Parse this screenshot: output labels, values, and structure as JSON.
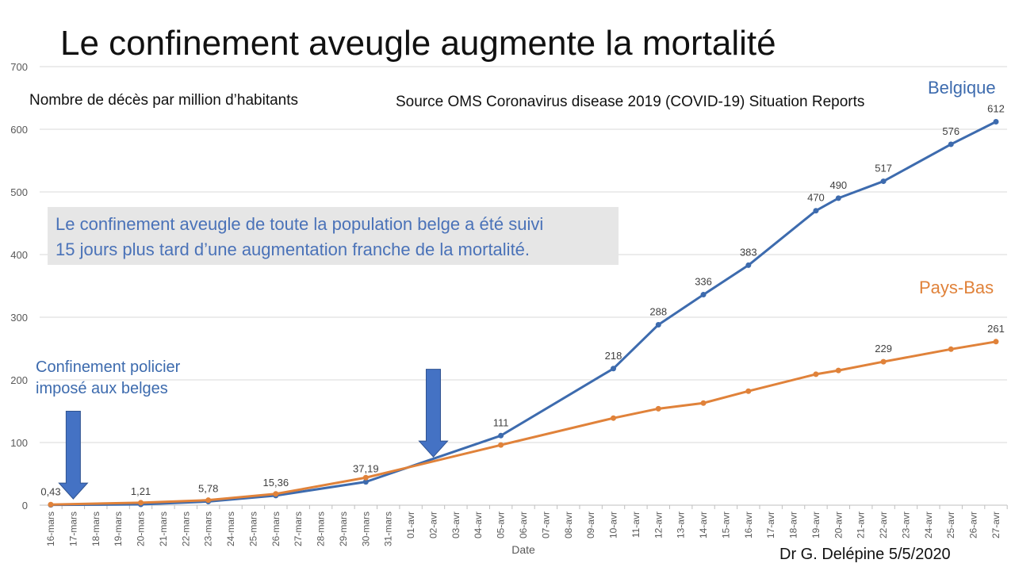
{
  "title": "Le confinement aveugle augmente la mortalité",
  "subtitle": "Nombre de décès par million d’habitants",
  "source": "Source OMS Coronavirus disease 2019 (COVID-19) Situation Reports",
  "callout": {
    "line1": "Le confinement aveugle de toute la population belge a été suivi",
    "line2": "15 jours plus tard d’une augmentation franche de la mortalité."
  },
  "annotation_lockdown": {
    "line1": "Confinement policier",
    "line2": "imposé aux belges"
  },
  "author": "Dr G. Delépine 5/5/2020",
  "colors": {
    "belgique": "#3D6BAE",
    "pays_bas": "#E0823A",
    "arrow": "#4472C4",
    "callout_bg": "#E6E6E6",
    "grid": "#D9D9D9"
  },
  "chart_data": {
    "type": "line",
    "xlabel": "Date",
    "ylabel": "",
    "ylim": [
      0,
      700
    ],
    "yticks": [
      0,
      100,
      200,
      300,
      400,
      500,
      600,
      700
    ],
    "grid": true,
    "categories": [
      "16-mars",
      "17-mars",
      "18-mars",
      "19-mars",
      "20-mars",
      "21-mars",
      "22-mars",
      "23-mars",
      "24-mars",
      "25-mars",
      "26-mars",
      "27-mars",
      "28-mars",
      "29-mars",
      "30-mars",
      "31-mars",
      "01-avr",
      "02-avr",
      "03-avr",
      "04-avr",
      "05-avr",
      "06-avr",
      "07-avr",
      "08-avr",
      "09-avr",
      "10-avr",
      "11-avr",
      "12-avr",
      "13-avr",
      "14-avr",
      "15-avr",
      "16-avr",
      "17-avr",
      "18-avr",
      "19-avr",
      "20-avr",
      "21-avr",
      "22-avr",
      "23-avr",
      "24-avr",
      "25-avr",
      "26-avr",
      "27-avr"
    ],
    "series": [
      {
        "name": "Belgique",
        "color": "#3D6BAE",
        "points": [
          {
            "x": "16-mars",
            "y": 0.43,
            "label": "0,43"
          },
          {
            "x": "20-mars",
            "y": 1.21,
            "label": "1,21"
          },
          {
            "x": "23-mars",
            "y": 5.78,
            "label": "5,78"
          },
          {
            "x": "26-mars",
            "y": 15.36,
            "label": "15,36"
          },
          {
            "x": "30-mars",
            "y": 37.19,
            "label": "37,19"
          },
          {
            "x": "05-avr",
            "y": 111,
            "label": "111"
          },
          {
            "x": "10-avr",
            "y": 218,
            "label": "218"
          },
          {
            "x": "12-avr",
            "y": 288,
            "label": "288"
          },
          {
            "x": "14-avr",
            "y": 336,
            "label": "336"
          },
          {
            "x": "16-avr",
            "y": 383,
            "label": "383"
          },
          {
            "x": "19-avr",
            "y": 470,
            "label": "470"
          },
          {
            "x": "20-avr",
            "y": 490,
            "label": "490"
          },
          {
            "x": "22-avr",
            "y": 517,
            "label": "517"
          },
          {
            "x": "25-avr",
            "y": 576,
            "label": "576"
          },
          {
            "x": "27-avr",
            "y": 612,
            "label": "612"
          }
        ]
      },
      {
        "name": "Pays-Bas",
        "color": "#E0823A",
        "points": [
          {
            "x": "16-mars",
            "y": 1
          },
          {
            "x": "20-mars",
            "y": 4
          },
          {
            "x": "23-mars",
            "y": 8
          },
          {
            "x": "26-mars",
            "y": 18
          },
          {
            "x": "30-mars",
            "y": 44
          },
          {
            "x": "05-avr",
            "y": 96
          },
          {
            "x": "10-avr",
            "y": 139
          },
          {
            "x": "12-avr",
            "y": 154
          },
          {
            "x": "14-avr",
            "y": 163
          },
          {
            "x": "16-avr",
            "y": 182
          },
          {
            "x": "19-avr",
            "y": 209
          },
          {
            "x": "20-avr",
            "y": 215
          },
          {
            "x": "22-avr",
            "y": 229,
            "label": "229"
          },
          {
            "x": "25-avr",
            "y": 249
          },
          {
            "x": "27-avr",
            "y": 261,
            "label": "261"
          }
        ]
      }
    ],
    "arrows": [
      {
        "x": "17-mars",
        "y_top": 150,
        "y_tip": 10
      },
      {
        "x": "02-avr",
        "y_top": 217,
        "y_tip": 77
      }
    ]
  }
}
